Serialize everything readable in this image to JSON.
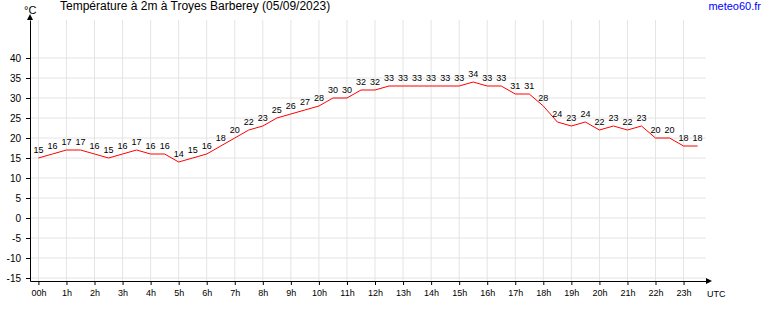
{
  "chart_data": {
    "type": "line",
    "title": "Température à 2m à Troyes Barberey (05/09/2023)",
    "y_label": "°C",
    "x_label": "UTC",
    "source": "meteo60.fr",
    "color": "#ff0000",
    "grid": true,
    "data_labels": true,
    "x": [
      0,
      0.5,
      1,
      1.5,
      2,
      2.5,
      3,
      3.5,
      4,
      4.5,
      5,
      5.5,
      6,
      6.5,
      7,
      7.5,
      8,
      8.5,
      9,
      9.5,
      10,
      10.5,
      11,
      11.5,
      12,
      12.5,
      13,
      13.5,
      14,
      14.5,
      15,
      15.5,
      16,
      16.5,
      17,
      17.5,
      18,
      18.5,
      19,
      19.5,
      20,
      20.5,
      21,
      21.5,
      22,
      22.5,
      23,
      23.5
    ],
    "values": [
      15,
      16,
      17,
      17,
      16,
      15,
      16,
      17,
      16,
      16,
      14,
      15,
      16,
      18,
      20,
      22,
      23,
      25,
      26,
      27,
      28,
      30,
      30,
      32,
      32,
      33,
      33,
      33,
      33,
      33,
      33,
      34,
      33,
      33,
      31,
      31,
      28,
      24,
      23,
      24,
      22,
      23,
      22,
      23,
      20,
      20,
      18,
      18
    ],
    "xlim": [
      -0.3,
      23.8
    ],
    "xticks": [
      {
        "value": 0,
        "label": "00h"
      },
      {
        "value": 1,
        "label": "1h"
      },
      {
        "value": 2,
        "label": "2h"
      },
      {
        "value": 3,
        "label": "3h"
      },
      {
        "value": 4,
        "label": "4h"
      },
      {
        "value": 5,
        "label": "5h"
      },
      {
        "value": 6,
        "label": "6h"
      },
      {
        "value": 7,
        "label": "7h"
      },
      {
        "value": 8,
        "label": "8h"
      },
      {
        "value": 9,
        "label": "9h"
      },
      {
        "value": 10,
        "label": "10h"
      },
      {
        "value": 11,
        "label": "11h"
      },
      {
        "value": 12,
        "label": "12h"
      },
      {
        "value": 13,
        "label": "13h"
      },
      {
        "value": 14,
        "label": "14h"
      },
      {
        "value": 15,
        "label": "15h"
      },
      {
        "value": 16,
        "label": "16h"
      },
      {
        "value": 17,
        "label": "17h"
      },
      {
        "value": 18,
        "label": "18h"
      },
      {
        "value": 19,
        "label": "19h"
      },
      {
        "value": 20,
        "label": "20h"
      },
      {
        "value": 21,
        "label": "21h"
      },
      {
        "value": 22,
        "label": "22h"
      },
      {
        "value": 23,
        "label": "23h"
      }
    ],
    "ylim": [
      -15.75,
      49.5
    ],
    "yticks": [
      -15,
      -10,
      -5,
      0,
      5,
      10,
      15,
      20,
      25,
      30,
      35,
      40
    ]
  }
}
